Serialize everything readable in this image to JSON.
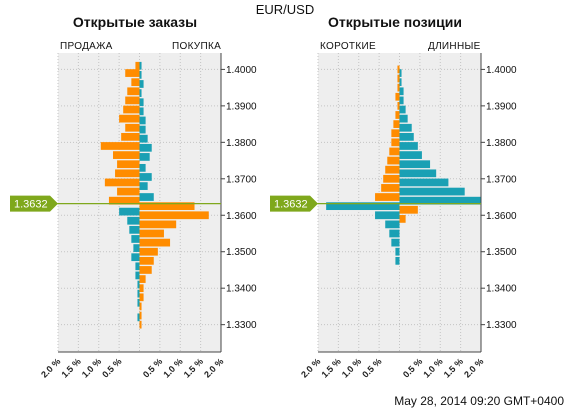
{
  "title": "EUR/USD",
  "panels": {
    "left": {
      "title": "Открытые заказы",
      "left_label": "ПРОДАЖА",
      "right_label": "ПОКУПКА"
    },
    "right": {
      "title": "Открытые позиции",
      "left_label": "КОРОТКИЕ",
      "right_label": "ДЛИННЫЕ"
    }
  },
  "current_price": "1.3632",
  "timestamp": "May 28, 2014 09:20 GMT+0400",
  "colors": {
    "orange": "#ff8c00",
    "teal": "#1aa0b4",
    "marker": "#7fa81c",
    "grid_bg": "#eeeeee"
  },
  "chart_data": [
    {
      "type": "bar",
      "title": "Открытые заказы",
      "orientation": "horizontal-butterfly",
      "y_ticks": [
        "1.3300",
        "1.3400",
        "1.3500",
        "1.3600",
        "1.3700",
        "1.3800",
        "1.3900",
        "1.4000"
      ],
      "x_ticks": [
        "2.0 %",
        "1.5 %",
        "1.0 %",
        "0.5 %",
        "",
        "0.5 %",
        "1.0 %",
        "1.5 %",
        "2.0 %"
      ],
      "ylim": [
        1.3225,
        1.4045
      ],
      "xlim": [
        -2.0,
        2.0
      ],
      "price_step": 0.0025,
      "series": [
        {
          "name": "ПРОДАЖА",
          "color": "#ff8c00",
          "side": "left",
          "levels": [
            1.364,
            1.3665,
            1.369,
            1.3715,
            1.374,
            1.3765,
            1.379,
            1.3815,
            1.384,
            1.3865,
            1.389,
            1.3915,
            1.394,
            1.3965,
            1.399,
            1.401
          ],
          "values": [
            0.75,
            0.55,
            0.85,
            0.6,
            0.55,
            0.65,
            0.95,
            0.45,
            0.35,
            0.5,
            0.4,
            0.35,
            0.3,
            0.2,
            0.35,
            0.1
          ]
        },
        {
          "name": "ПОКУПКА",
          "color": "#ff8c00",
          "side": "right",
          "levels": [
            1.3625,
            1.36,
            1.3575,
            1.355,
            1.3525,
            1.35,
            1.3475,
            1.345,
            1.3425,
            1.34,
            1.3375,
            1.335,
            1.3325,
            1.33
          ],
          "values": [
            1.35,
            1.7,
            0.9,
            0.6,
            0.75,
            0.45,
            0.35,
            0.3,
            0.15,
            0.1,
            0.1,
            0.05,
            0.05,
            0.05
          ]
        },
        {
          "name": "ПРОДАЖА",
          "color": "#1aa0b4",
          "side": "left",
          "levels": [
            1.361,
            1.3585,
            1.356,
            1.3535,
            1.351,
            1.3485,
            1.346,
            1.3435,
            1.341,
            1.3385,
            1.336,
            1.332
          ],
          "values": [
            0.5,
            0.3,
            0.25,
            0.2,
            0.15,
            0.2,
            0.1,
            0.1,
            0.05,
            0.05,
            0.05,
            0.05
          ]
        },
        {
          "name": "ПОКУПКА",
          "color": "#1aa0b4",
          "side": "right",
          "levels": [
            1.365,
            1.368,
            1.3705,
            1.373,
            1.376,
            1.3785,
            1.381,
            1.3835,
            1.386,
            1.3885,
            1.391,
            1.3935,
            1.396,
            1.3985,
            1.401
          ],
          "values": [
            0.35,
            0.2,
            0.3,
            0.15,
            0.25,
            0.3,
            0.2,
            0.15,
            0.15,
            0.1,
            0.1,
            0.05,
            0.1,
            0.05,
            0.05
          ]
        }
      ]
    },
    {
      "type": "bar",
      "title": "Открытые позиции",
      "orientation": "horizontal-butterfly",
      "y_ticks": [
        "1.3300",
        "1.3400",
        "1.3500",
        "1.3600",
        "1.3700",
        "1.3800",
        "1.3900",
        "1.4000"
      ],
      "x_ticks": [
        "2.0 %",
        "1.5 %",
        "1.0 %",
        "0.5 %",
        "",
        "0.5 %",
        "1.0 %",
        "1.5 %",
        "2.0 %"
      ],
      "ylim": [
        1.3225,
        1.4045
      ],
      "xlim": [
        -2.0,
        2.0
      ],
      "price_step": 0.0025,
      "series": [
        {
          "name": "КОРОТКИЕ",
          "color": "#ff8c00",
          "side": "left",
          "levels": [
            1.365,
            1.3675,
            1.37,
            1.3725,
            1.375,
            1.3775,
            1.38,
            1.3825,
            1.385,
            1.3875,
            1.39,
            1.3925,
            1.395,
            1.3975,
            1.4
          ],
          "values": [
            0.6,
            0.45,
            0.4,
            0.35,
            0.3,
            0.25,
            0.2,
            0.2,
            0.15,
            0.1,
            0.05,
            0.1,
            0.05,
            0.05,
            0.05
          ]
        },
        {
          "name": "ДЛИННЫЕ",
          "color": "#ff8c00",
          "side": "right",
          "levels": [
            1.3615,
            1.359
          ],
          "values": [
            0.45,
            0.15
          ]
        },
        {
          "name": "КОРОТКИЕ",
          "color": "#1aa0b4",
          "side": "left",
          "levels": [
            1.3625,
            1.36,
            1.3575,
            1.355,
            1.3525,
            1.35,
            1.3475
          ],
          "values": [
            1.8,
            0.6,
            0.35,
            0.25,
            0.2,
            0.1,
            0.1
          ]
        },
        {
          "name": "ДЛИННЫЕ",
          "color": "#1aa0b4",
          "side": "right",
          "levels": [
            1.364,
            1.3665,
            1.369,
            1.3715,
            1.374,
            1.3765,
            1.379,
            1.3815,
            1.384,
            1.3865,
            1.389,
            1.3915,
            1.394,
            1.3965,
            1.399
          ],
          "values": [
            2.0,
            1.6,
            1.2,
            0.9,
            0.75,
            0.55,
            0.45,
            0.35,
            0.3,
            0.2,
            0.15,
            0.1,
            0.1,
            0.05,
            0.05
          ]
        }
      ]
    }
  ]
}
